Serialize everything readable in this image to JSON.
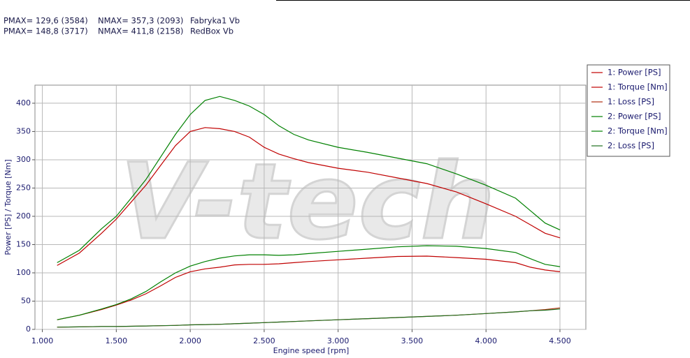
{
  "chart_data": {
    "type": "line",
    "header": [
      [
        "PMAX= 129,6 (3584)",
        "NMAX= 357,3 (2093)",
        "Fabryka1 Vb"
      ],
      [
        "PMAX= 148,8 (3717)",
        "NMAX= 411,8 (2158)",
        "RedBox Vb"
      ]
    ],
    "watermark": "V-tech",
    "x_label": "Engine speed [rpm]",
    "y_label": "Power [PS] / Torque [Nm]",
    "x": [
      1100,
      1250,
      1400,
      1500,
      1600,
      1700,
      1800,
      1900,
      2000,
      2100,
      2200,
      2300,
      2400,
      2500,
      2600,
      2700,
      2800,
      3000,
      3200,
      3400,
      3600,
      3800,
      4000,
      4200,
      4300,
      4400,
      4500
    ],
    "series": [
      {
        "name": "1: Power [PS]",
        "color": "#c00000",
        "values": [
          17,
          25,
          35,
          43,
          52,
          63,
          77,
          92,
          102,
          107,
          110,
          114,
          115,
          115,
          116,
          118,
          120,
          123,
          126,
          129,
          129.6,
          127,
          124,
          118,
          110,
          105,
          102
        ]
      },
      {
        "name": "1: Torque [Nm]",
        "color": "#c00000",
        "values": [
          113,
          135,
          170,
          195,
          225,
          255,
          290,
          325,
          350,
          357,
          355,
          350,
          340,
          322,
          310,
          302,
          295,
          285,
          278,
          268,
          258,
          243,
          222,
          200,
          185,
          170,
          162
        ]
      },
      {
        "name": "1: Loss [PS]",
        "color": "#b03010",
        "values": [
          4,
          4.5,
          5,
          5,
          5.5,
          6,
          6.5,
          7,
          8,
          8.5,
          9,
          10,
          11,
          12,
          13,
          14,
          15,
          17,
          19,
          21,
          23,
          25,
          28,
          31,
          33,
          35,
          38
        ]
      },
      {
        "name": "2: Power [PS]",
        "color": "#008000",
        "values": [
          17,
          25,
          36,
          44,
          54,
          67,
          84,
          100,
          112,
          120,
          126,
          130,
          132,
          132,
          131,
          132,
          134,
          138,
          142,
          146,
          148,
          147,
          143,
          136,
          125,
          115,
          111
        ]
      },
      {
        "name": "2: Torque [Nm]",
        "color": "#008000",
        "values": [
          118,
          140,
          178,
          200,
          232,
          265,
          305,
          345,
          380,
          405,
          412,
          405,
          395,
          380,
          360,
          345,
          335,
          322,
          313,
          303,
          293,
          275,
          255,
          232,
          210,
          188,
          176
        ]
      },
      {
        "name": "2: Loss [PS]",
        "color": "#207020",
        "values": [
          4,
          4.5,
          5,
          5,
          5.5,
          6,
          6.5,
          7,
          8,
          8.5,
          9,
          10,
          11,
          12,
          13,
          14,
          15,
          17,
          19,
          21,
          23,
          25,
          28,
          31,
          33,
          34,
          36
        ]
      }
    ],
    "xlim": [
      950,
      4675
    ],
    "xticks": [
      {
        "value": 1000,
        "label": "1.000"
      },
      {
        "value": 1500,
        "label": "1.500"
      },
      {
        "value": 2000,
        "label": "2.000"
      },
      {
        "value": 2500,
        "label": "2.500"
      },
      {
        "value": 3000,
        "label": "3.000"
      },
      {
        "value": 3500,
        "label": "3.500"
      },
      {
        "value": 4000,
        "label": "4.000"
      },
      {
        "value": 4500,
        "label": "4.500"
      }
    ],
    "ylim": [
      0,
      432
    ],
    "yticks": [
      0,
      50,
      100,
      150,
      200,
      250,
      300,
      350,
      400
    ],
    "grid": true
  }
}
